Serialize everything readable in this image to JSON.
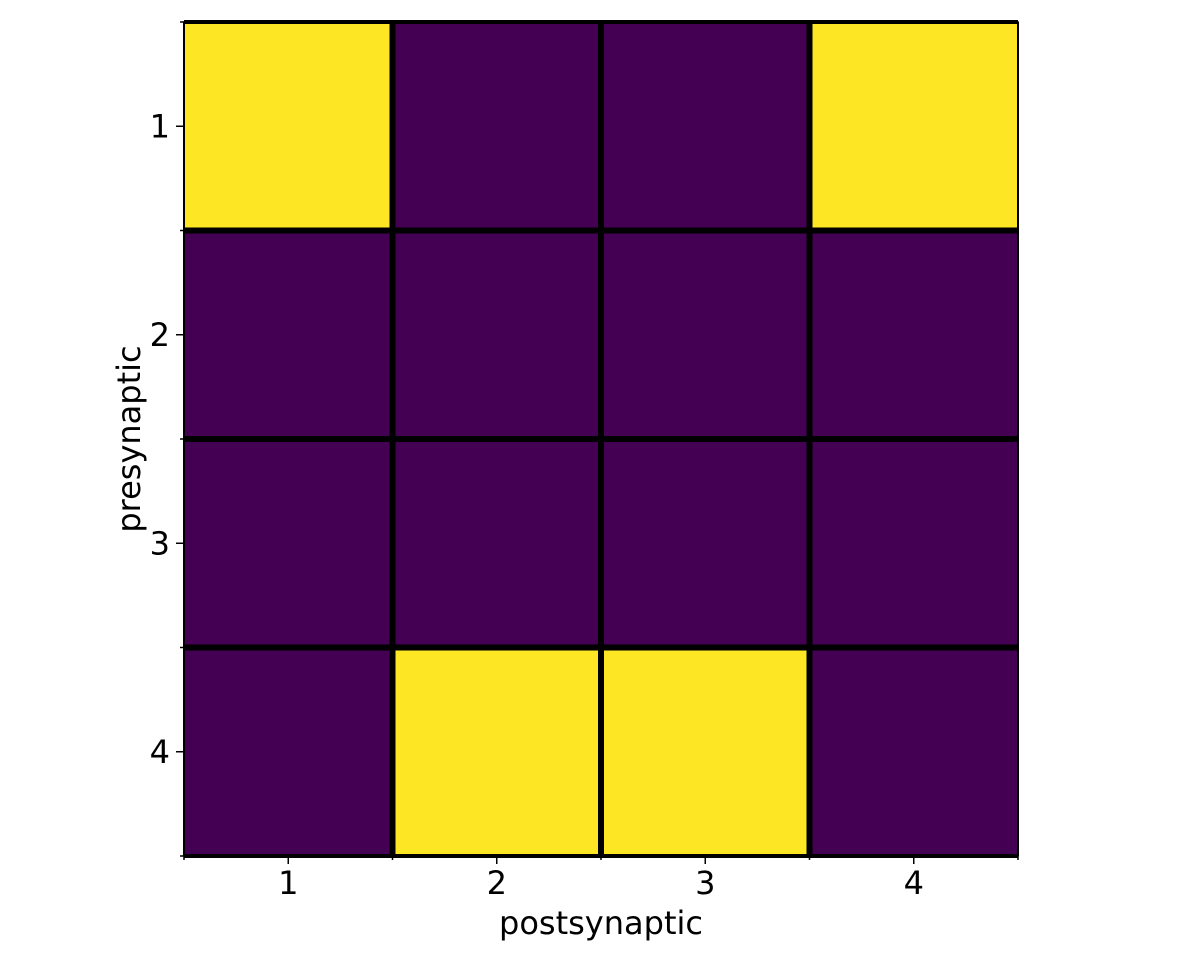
{
  "chart_data": {
    "type": "heatmap",
    "title": "",
    "xlabel": "postsynaptic",
    "ylabel": "presynaptic",
    "x_categories": [
      "1",
      "2",
      "3",
      "4"
    ],
    "y_categories": [
      "1",
      "2",
      "3",
      "4"
    ],
    "values": [
      [
        1,
        0,
        0,
        1
      ],
      [
        0,
        0,
        0,
        0
      ],
      [
        0,
        0,
        0,
        0
      ],
      [
        0,
        1,
        1,
        0
      ]
    ],
    "colorscale": {
      "min_value": 0,
      "max_value": 1,
      "min_color": "#440154",
      "max_color": "#fde725"
    },
    "grid": true,
    "grid_color": "#000000"
  }
}
